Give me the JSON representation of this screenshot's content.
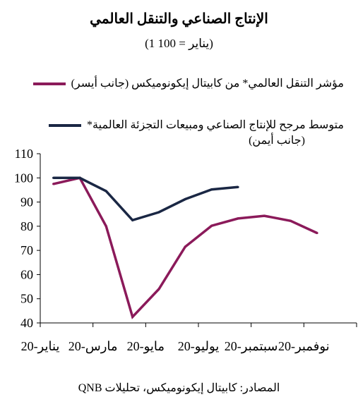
{
  "header": {
    "title": "الإنتاج الصناعي والتنقل العالمي",
    "subtitle": "(1 يناير = 100)"
  },
  "legend": {
    "series1": "مؤشر التنقل العالمي* من كابيتال إيكونوميكس (جانب أيسر)",
    "series2_line1": "متوسط مرجح للإنتاج الصناعي ومبيعات التجزئة العالمية*",
    "series2_line2": "(جانب أيمن)"
  },
  "source": "المصادر: كابيتال إيكونوميكس، تحليلات QNB",
  "colors": {
    "series1": "#8b1a5a",
    "series2": "#1a2744"
  },
  "chart_data": {
    "type": "line",
    "title": "الإنتاج الصناعي والتنقل العالمي",
    "subtitle": "(1 يناير = 100)",
    "x_tick_labels": [
      "يناير-20",
      "مارس-20",
      "مايو-20",
      "يوليو-20",
      "سبتمبر-20",
      "نوفمبر-20"
    ],
    "ylim": [
      40,
      110
    ],
    "y_ticks": [
      40,
      50,
      60,
      70,
      80,
      90,
      100,
      110
    ],
    "grid": false,
    "series": [
      {
        "name": "مؤشر التنقل العالمي* من كابيتال إيكونوميكس (جانب أيسر)",
        "color": "#8b1a5a",
        "points": [
          {
            "x": "2020-01-01",
            "y": 97.5
          },
          {
            "x": "2020-02-01",
            "y": 100
          },
          {
            "x": "2020-03-01",
            "y": 80
          },
          {
            "x": "2020-04-01",
            "y": 42.5
          },
          {
            "x": "2020-05-01",
            "y": 54
          },
          {
            "x": "2020-06-01",
            "y": 71.5
          },
          {
            "x": "2020-07-01",
            "y": 80.2
          },
          {
            "x": "2020-08-01",
            "y": 83.2
          },
          {
            "x": "2020-09-01",
            "y": 84.3
          },
          {
            "x": "2020-10-01",
            "y": 82.2
          },
          {
            "x": "2020-11-01",
            "y": 77.2
          }
        ]
      },
      {
        "name": "متوسط مرجح للإنتاج الصناعي ومبيعات التجزئة العالمية* (جانب أيمن)",
        "color": "#1a2744",
        "points": [
          {
            "x": "2020-01-01",
            "y": 100
          },
          {
            "x": "2020-02-01",
            "y": 100
          },
          {
            "x": "2020-03-01",
            "y": 94.5
          },
          {
            "x": "2020-04-01",
            "y": 82.5
          },
          {
            "x": "2020-05-01",
            "y": 85.8
          },
          {
            "x": "2020-06-01",
            "y": 91.2
          },
          {
            "x": "2020-07-01",
            "y": 95.2
          },
          {
            "x": "2020-08-01",
            "y": 96.2
          }
        ]
      }
    ]
  }
}
